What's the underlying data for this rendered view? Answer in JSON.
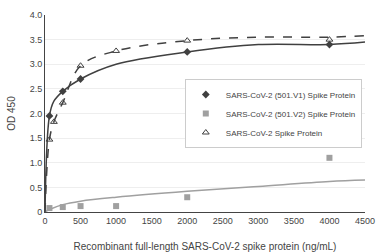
{
  "chart_data": {
    "type": "line",
    "xlabel": "Recombinant full-length SARS-CoV-2 spike protein (ng/mL)",
    "ylabel": "OD 450",
    "xlim": [
      0,
      4500
    ],
    "ylim": [
      0,
      4.0
    ],
    "xticks": [
      0,
      500,
      1000,
      1500,
      2000,
      2500,
      3000,
      3500,
      4000,
      4500
    ],
    "yticks": [
      0,
      {
        "value": 0.5,
        "label": "0.5"
      },
      {
        "value": 1.0,
        "label": "1.0"
      },
      {
        "value": 1.5,
        "label": "1.5"
      },
      {
        "value": 2.0,
        "label": "2.0"
      },
      {
        "value": 2.5,
        "label": "2.5"
      },
      {
        "value": 3.0,
        "label": "3.0"
      },
      {
        "value": 3.5,
        "label": "3.5"
      },
      {
        "value": 4.0,
        "label": "4.0"
      }
    ],
    "grid": true,
    "legend": "right",
    "series": [
      {
        "name": "SARS-CoV-2 (501.V1) Spike Protein",
        "color": "#404040",
        "marker": "diamond",
        "line_style": "solid",
        "x": [
          62.5,
          250,
          500,
          2000,
          4000
        ],
        "values": [
          1.95,
          2.45,
          2.7,
          3.25,
          3.4
        ],
        "curve": {
          "x": [
            0,
            62.5,
            125,
            250,
            500,
            1000,
            2000,
            3000,
            4000,
            4500
          ],
          "values": [
            0,
            1.95,
            2.25,
            2.45,
            2.7,
            3.0,
            3.25,
            3.4,
            3.4,
            3.45
          ]
        }
      },
      {
        "name": "SARS-CoV-2 (501.V2) Spike Protein",
        "color": "#a0a0a0",
        "marker": "square",
        "line_style": "solid",
        "x": [
          62.5,
          250,
          500,
          1000,
          2000,
          4000
        ],
        "values": [
          0.08,
          0.1,
          0.12,
          0.12,
          0.3,
          1.1
        ],
        "curve": {
          "x": [
            0,
            62.5,
            250,
            500,
            1000,
            2000,
            3000,
            4000,
            4500
          ],
          "values": [
            0,
            0.05,
            0.15,
            0.22,
            0.3,
            0.42,
            0.52,
            0.62,
            0.65
          ]
        }
      },
      {
        "name": "SARS-CoV-2 Spike Protein",
        "color": "#404040",
        "marker": "triangle-up-open",
        "line_style": "dashed",
        "x": [
          62.5,
          125,
          250,
          500,
          1000,
          2000,
          4000
        ],
        "values": [
          1.47,
          1.83,
          2.22,
          2.97,
          3.27,
          3.48,
          3.5
        ],
        "curve": {
          "x": [
            0,
            62.5,
            125,
            250,
            500,
            1000,
            2000,
            3000,
            4000,
            4500
          ],
          "values": [
            0,
            1.47,
            1.83,
            2.22,
            2.97,
            3.27,
            3.48,
            3.55,
            3.55,
            3.58
          ]
        }
      }
    ]
  }
}
